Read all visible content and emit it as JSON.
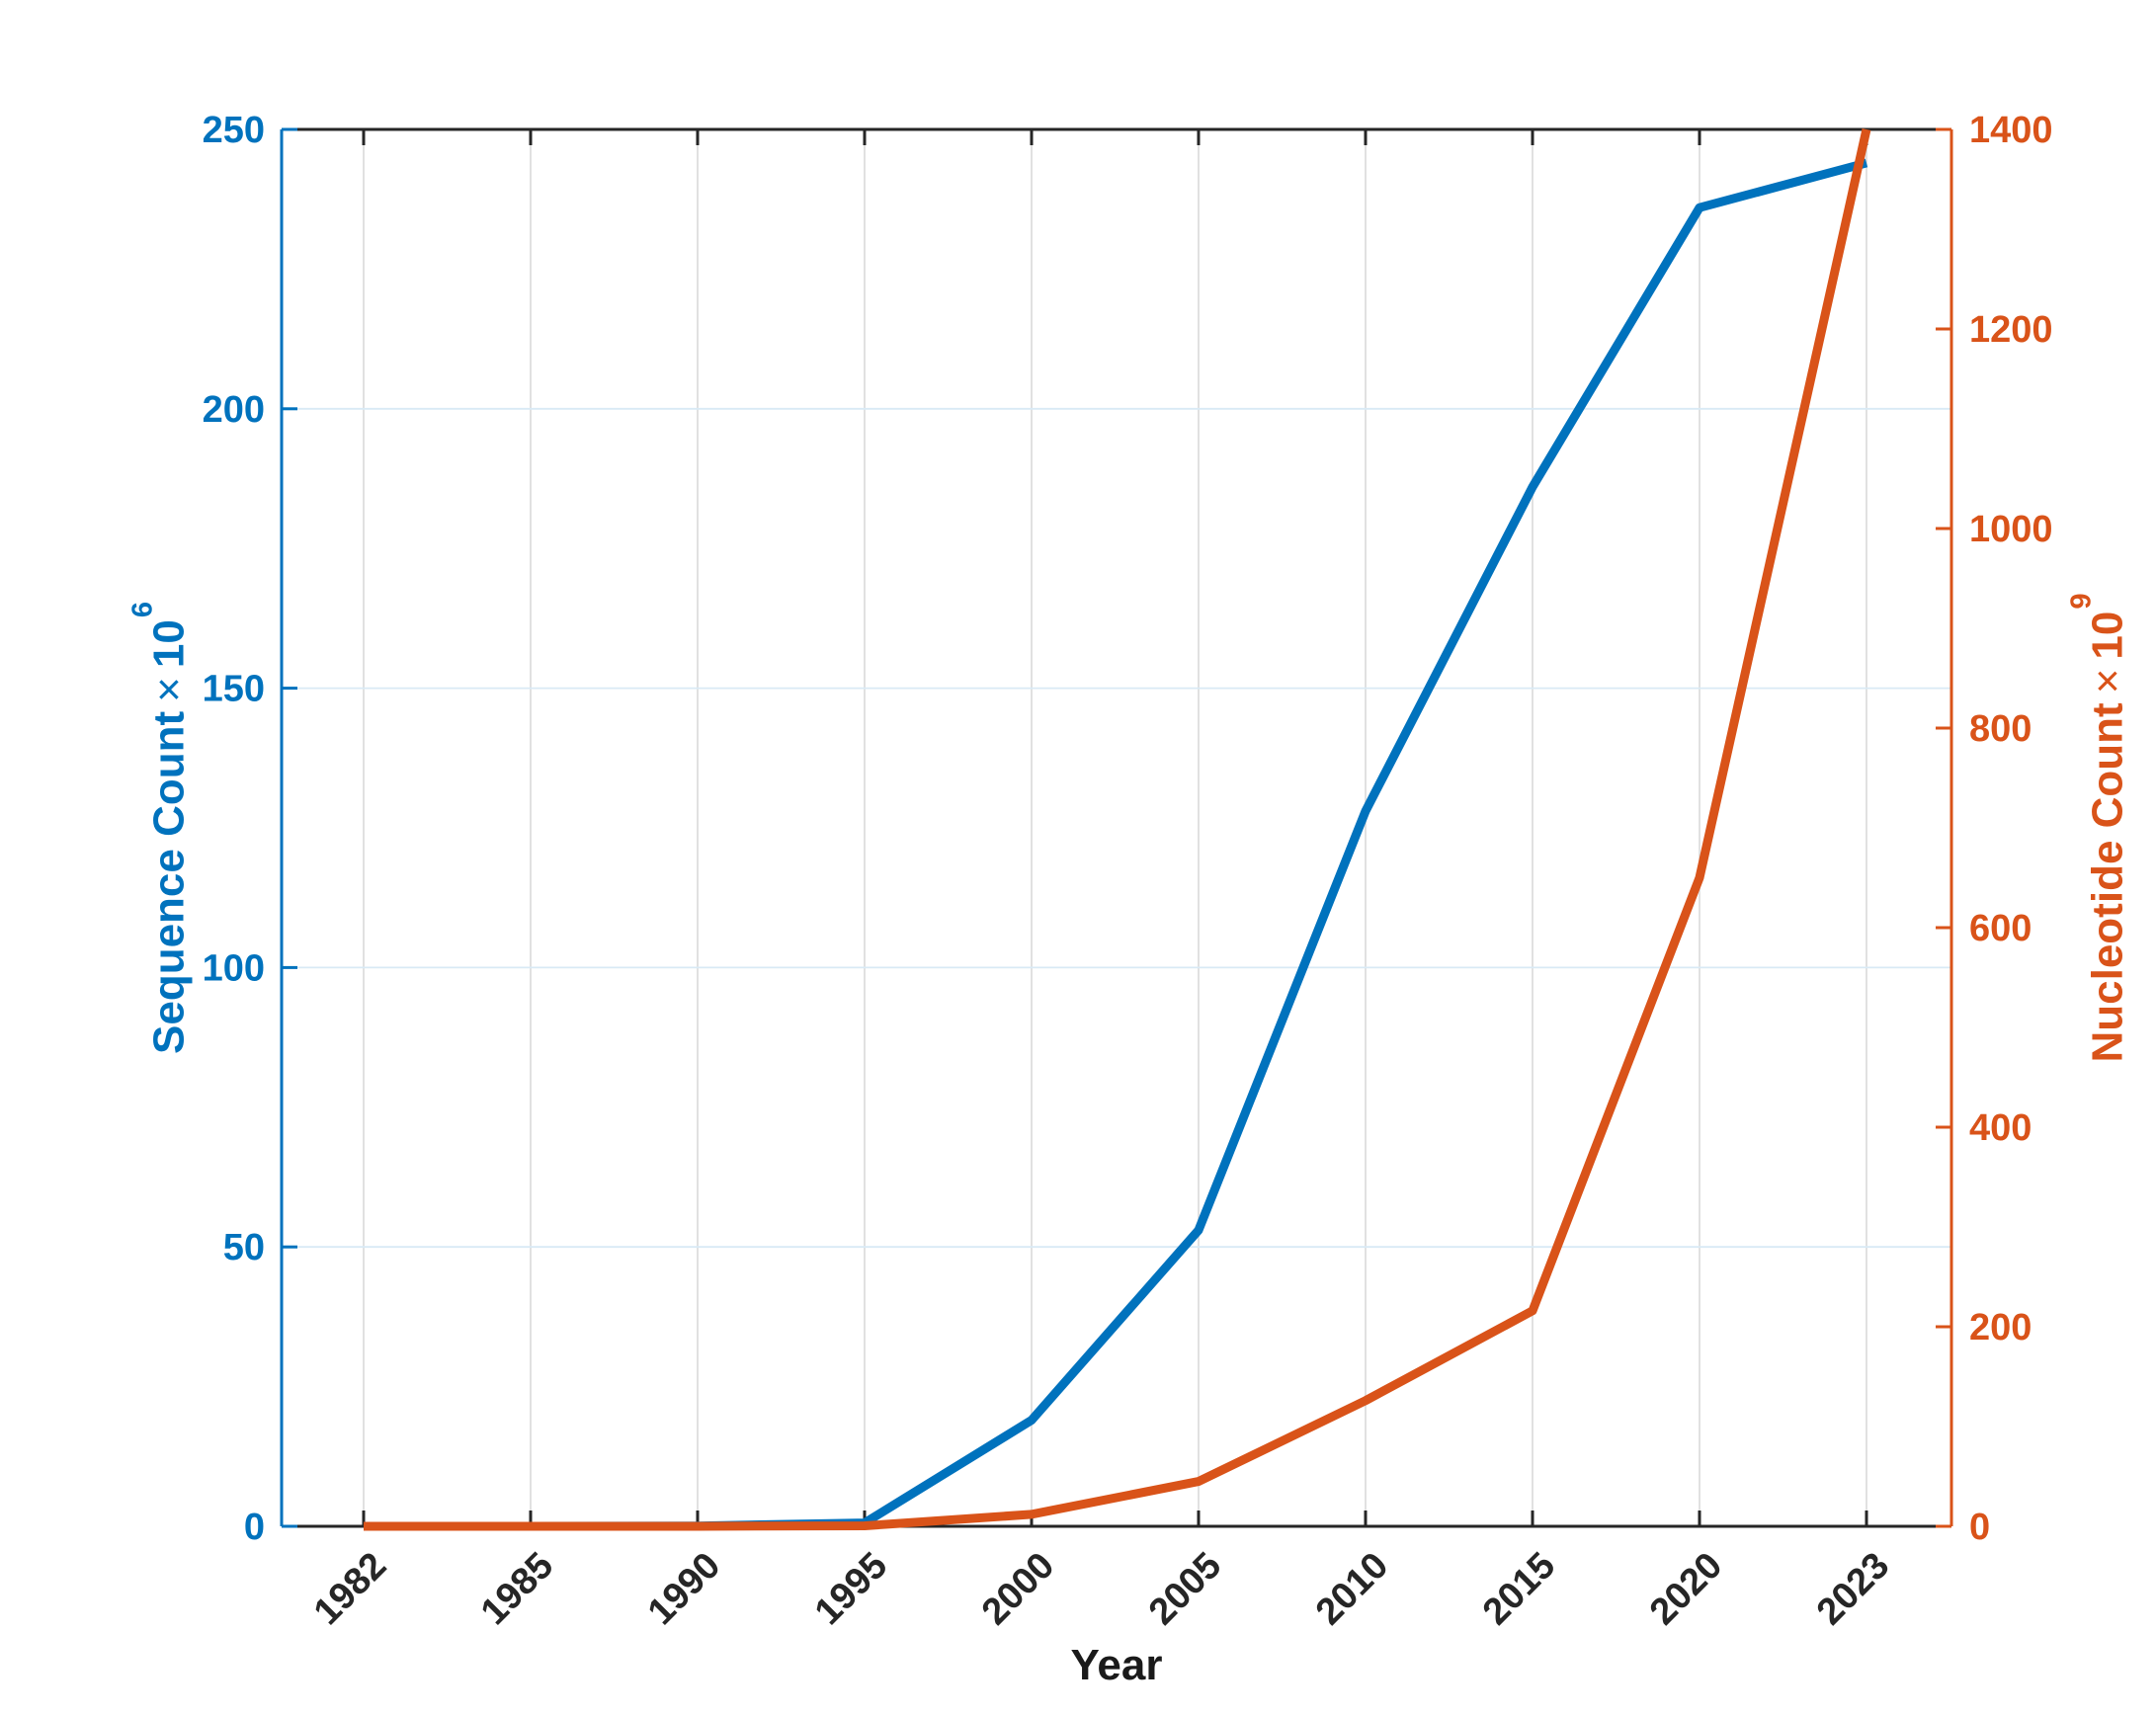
{
  "axes": {
    "x": {
      "title": "Year",
      "color": "#262626",
      "tick_labels": [
        "1982",
        "1985",
        "1990",
        "1995",
        "2000",
        "2005",
        "2010",
        "2015",
        "2020",
        "2023"
      ]
    },
    "left": {
      "title": "Sequence Count",
      "mult_sign": "×",
      "base": "10",
      "exponent": "6",
      "color": "#0072BD",
      "tick_labels": [
        "0",
        "50",
        "100",
        "150",
        "200",
        "250"
      ]
    },
    "right": {
      "title": "Nucleotide Count",
      "mult_sign": "×",
      "base": "10",
      "exponent": "9",
      "color": "#D95319",
      "tick_labels": [
        "0",
        "200",
        "400",
        "600",
        "800",
        "1000",
        "1200",
        "1400"
      ]
    }
  },
  "chart_data": {
    "type": "line",
    "title": "",
    "xlabel": "Year",
    "x_type": "categorical",
    "categories": [
      1982,
      1985,
      1990,
      1995,
      2000,
      2005,
      2010,
      2015,
      2020,
      2023
    ],
    "series": [
      {
        "name": "Sequence Count × 10^6",
        "yaxis": "left",
        "color": "#0072BD",
        "values": [
          0,
          0,
          0.05,
          0.6,
          19,
          53,
          128,
          186,
          236,
          244
        ]
      },
      {
        "name": "Nucleotide Count × 10^9",
        "yaxis": "right",
        "color": "#D95319",
        "values": [
          0,
          0,
          0.05,
          0.5,
          12,
          45,
          126,
          216,
          650,
          1400
        ]
      }
    ],
    "ylabel_left": "Sequence Count × 10^6",
    "ylabel_right": "Nucleotide Count × 10^9",
    "ylim_left": [
      0,
      250
    ],
    "ylim_right": [
      0,
      1400
    ],
    "yticks_left": [
      0,
      50,
      100,
      150,
      200,
      250
    ],
    "yticks_right": [
      0,
      200,
      400,
      600,
      800,
      1000,
      1200,
      1400
    ],
    "grid": true,
    "legend": "none",
    "styles": {
      "grid_vertical_color": "#dedede",
      "grid_horizontal_color": "#d9eaf5",
      "spine_dark_color": "#262626",
      "left_axis_color": "#0072BD",
      "right_axis_color": "#D95319",
      "background": "#ffffff"
    }
  }
}
